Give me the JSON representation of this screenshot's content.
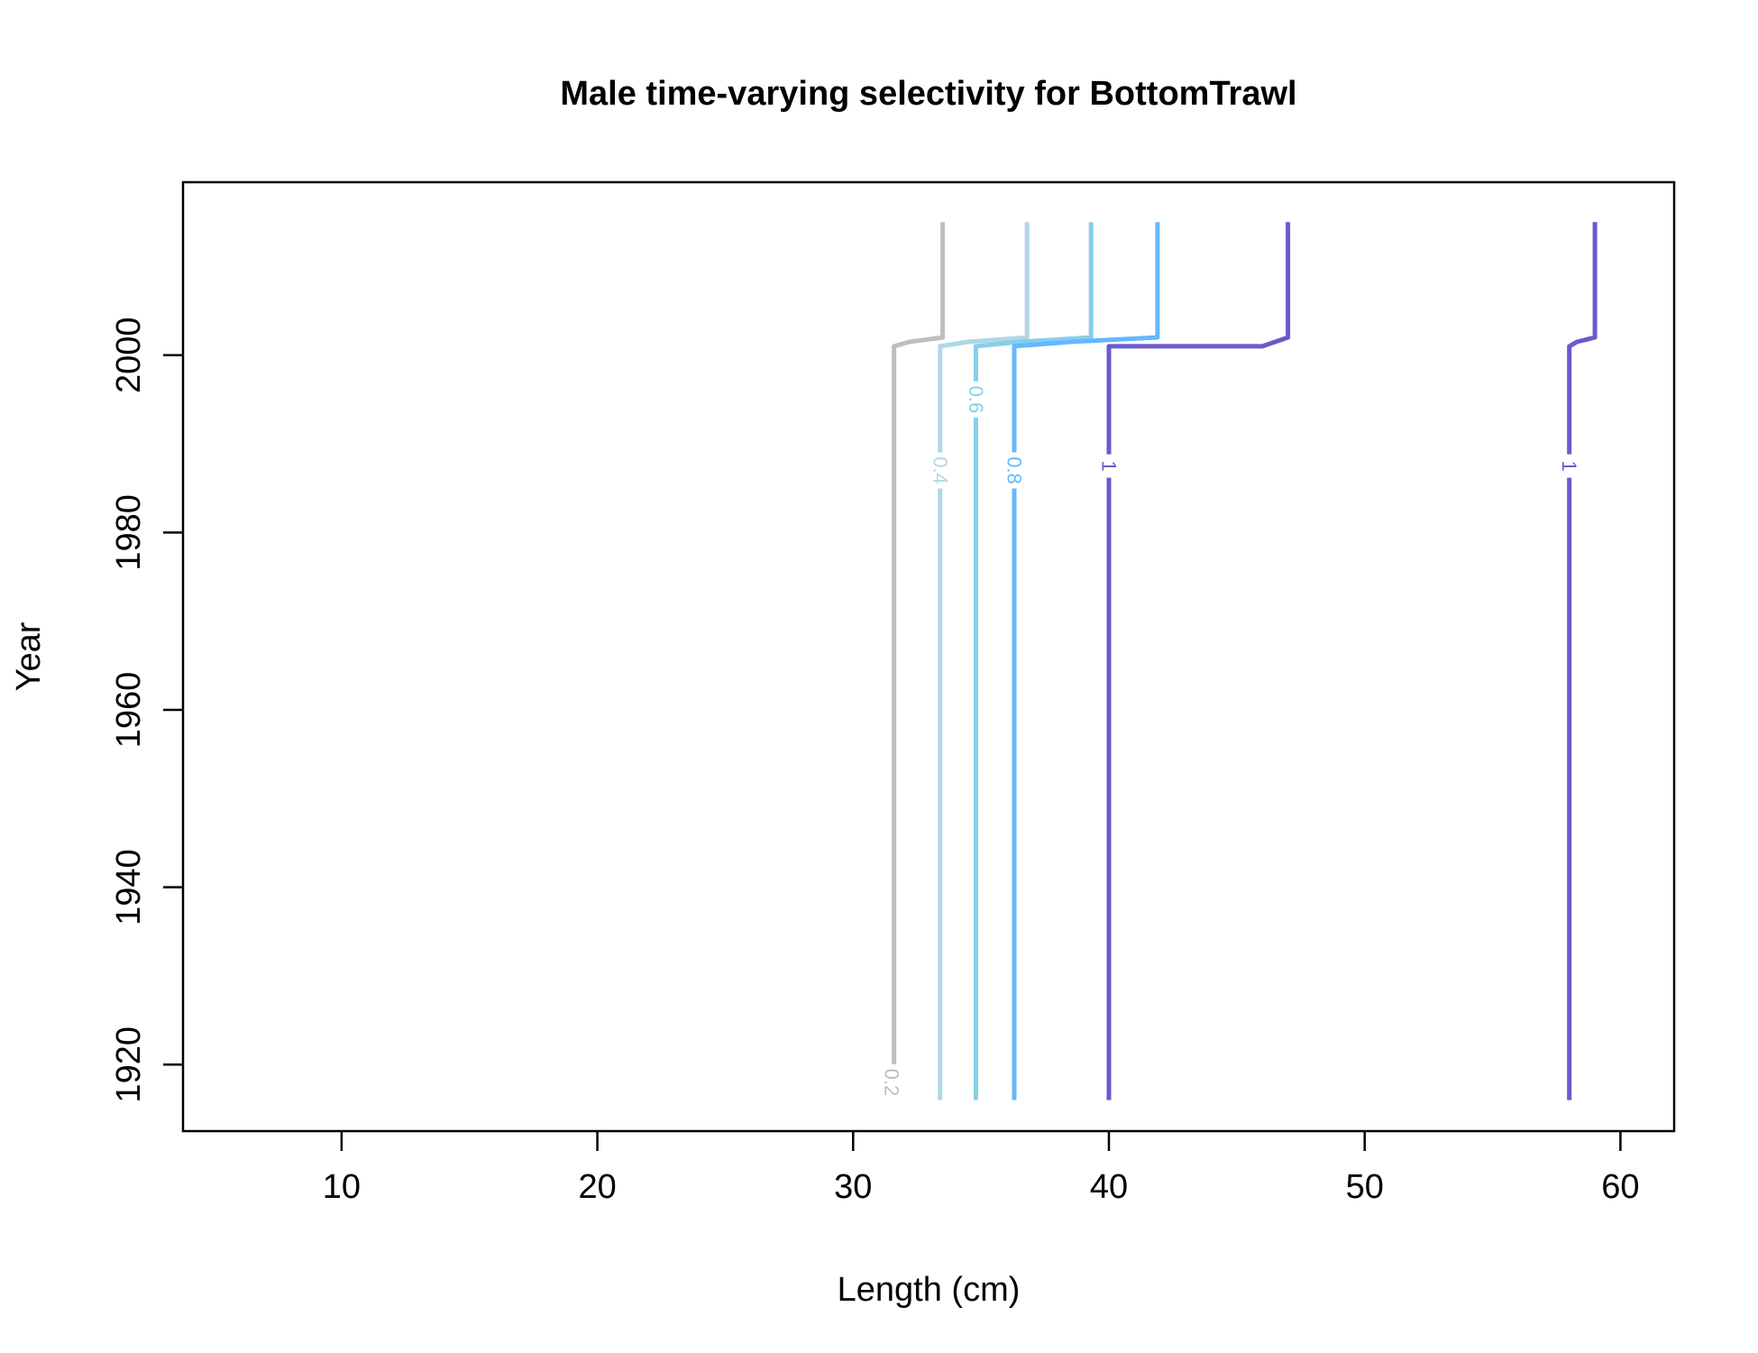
{
  "chart_data": {
    "type": "line",
    "title": "Male time-varying selectivity for BottomTrawl",
    "xlabel": "Length (cm)",
    "ylabel": "Year",
    "xlim": [
      3.8,
      62.1
    ],
    "ylim": [
      1912.5,
      2019.5
    ],
    "xticks": [
      10,
      20,
      30,
      40,
      50,
      60
    ],
    "yticks": [
      1920,
      1940,
      1960,
      1980,
      2000
    ],
    "grid": false,
    "legend": "none",
    "series": [
      {
        "level": "0.2",
        "color": "#bebebe",
        "points": [
          [
            31.6,
            1916
          ],
          [
            31.6,
            2001
          ],
          [
            32.2,
            2001.5
          ],
          [
            33.5,
            2002
          ],
          [
            33.5,
            2015
          ]
        ],
        "label": {
          "text": "0.2",
          "x": 31.5,
          "y": 1918
        }
      },
      {
        "level": "0.4",
        "color": "#add8e6",
        "points": [
          [
            33.4,
            1916
          ],
          [
            33.4,
            2001
          ],
          [
            34.5,
            2001.5
          ],
          [
            36.8,
            2002
          ],
          [
            36.8,
            2015
          ]
        ],
        "label": {
          "text": "0.4",
          "x": 33.4,
          "y": 1987
        }
      },
      {
        "level": "0.6",
        "color": "#87ceeb",
        "points": [
          [
            34.8,
            1916
          ],
          [
            34.8,
            2001
          ],
          [
            36.5,
            2001.5
          ],
          [
            39.3,
            2002
          ],
          [
            39.3,
            2015
          ]
        ],
        "label": {
          "text": "0.6",
          "x": 34.8,
          "y": 1995
        }
      },
      {
        "level": "0.8",
        "color": "#63b8ff",
        "points": [
          [
            36.3,
            1916
          ],
          [
            36.3,
            2001
          ],
          [
            38.5,
            2001.5
          ],
          [
            41.9,
            2002
          ],
          [
            41.9,
            2015
          ]
        ],
        "label": {
          "text": "0.8",
          "x": 36.3,
          "y": 1987
        }
      },
      {
        "level": "1",
        "color": "#6a5acd",
        "points": [
          [
            40.0,
            1916
          ],
          [
            40.0,
            2001
          ],
          [
            46.0,
            2001
          ],
          [
            47.0,
            2002
          ],
          [
            47.0,
            2015
          ]
        ],
        "label": {
          "text": "1",
          "x": 40.0,
          "y": 1987.5
        }
      },
      {
        "level": "1",
        "color": "#6a5acd",
        "points": [
          [
            58.0,
            1916
          ],
          [
            58.0,
            2001
          ],
          [
            58.3,
            2001.5
          ],
          [
            59.0,
            2002
          ],
          [
            59.0,
            2015
          ]
        ],
        "label": {
          "text": "1",
          "x": 58.0,
          "y": 1987.5
        }
      }
    ]
  }
}
